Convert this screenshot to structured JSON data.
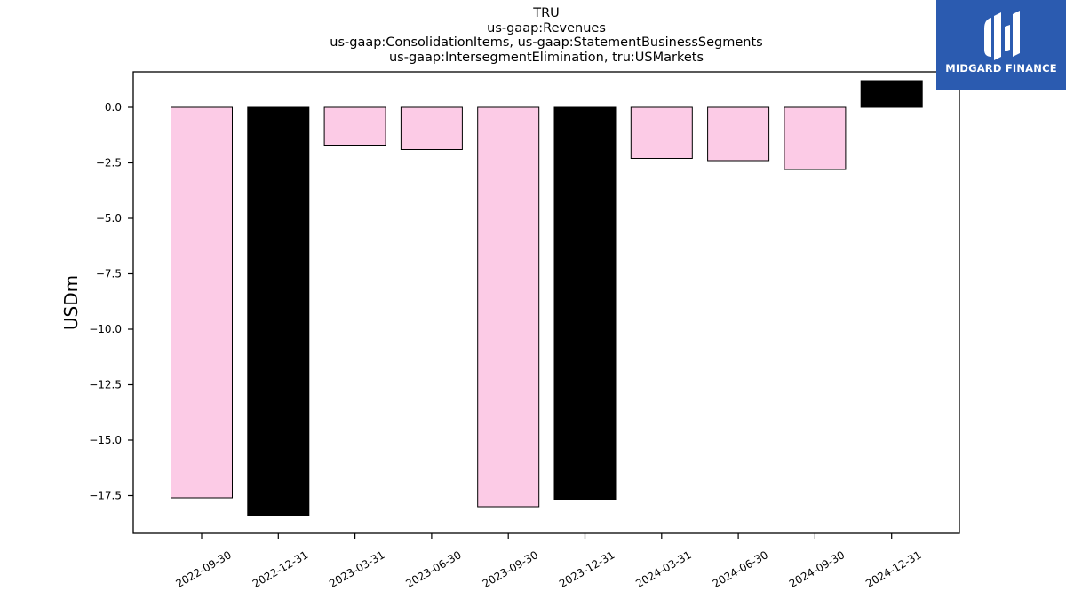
{
  "header": {
    "lines": [
      "TRU",
      "us-gaap:Revenues",
      "us-gaap:ConsolidationItems, us-gaap:StatementBusinessSegments",
      "us-gaap:IntersegmentElimination, tru:USMarkets"
    ]
  },
  "logo": {
    "text": "MIDGARD FINANCE",
    "bg_color": "#2b5bb0"
  },
  "chart_data": {
    "type": "bar",
    "title": "TRU\nus-gaap:Revenues\nus-gaap:ConsolidationItems, us-gaap:StatementBusinessSegments\nus-gaap:IntersegmentElimination, tru:USMarkets",
    "xlabel": "",
    "ylabel": "USDm",
    "ylim": [
      -19.2,
      1.6
    ],
    "yticks": [
      0.0,
      -2.5,
      -5.0,
      -7.5,
      -10.0,
      -12.5,
      -15.0,
      -17.5
    ],
    "ytick_labels": [
      "0.0",
      "−2.5",
      "−5.0",
      "−7.5",
      "−10.0",
      "−12.5",
      "−15.0",
      "−17.5"
    ],
    "categories": [
      "2022-09-30",
      "2022-12-31",
      "2023-03-31",
      "2023-06-30",
      "2023-09-30",
      "2023-12-31",
      "2024-03-31",
      "2024-06-30",
      "2024-09-30",
      "2024-12-31"
    ],
    "values": [
      -17.6,
      -18.4,
      -1.7,
      -1.9,
      -18.0,
      -17.7,
      -2.3,
      -2.4,
      -2.8,
      1.2
    ],
    "colors": [
      "#fccbe6",
      "#000000",
      "#fccbe6",
      "#fccbe6",
      "#fccbe6",
      "#000000",
      "#fccbe6",
      "#fccbe6",
      "#fccbe6",
      "#000000"
    ],
    "grid": false
  }
}
